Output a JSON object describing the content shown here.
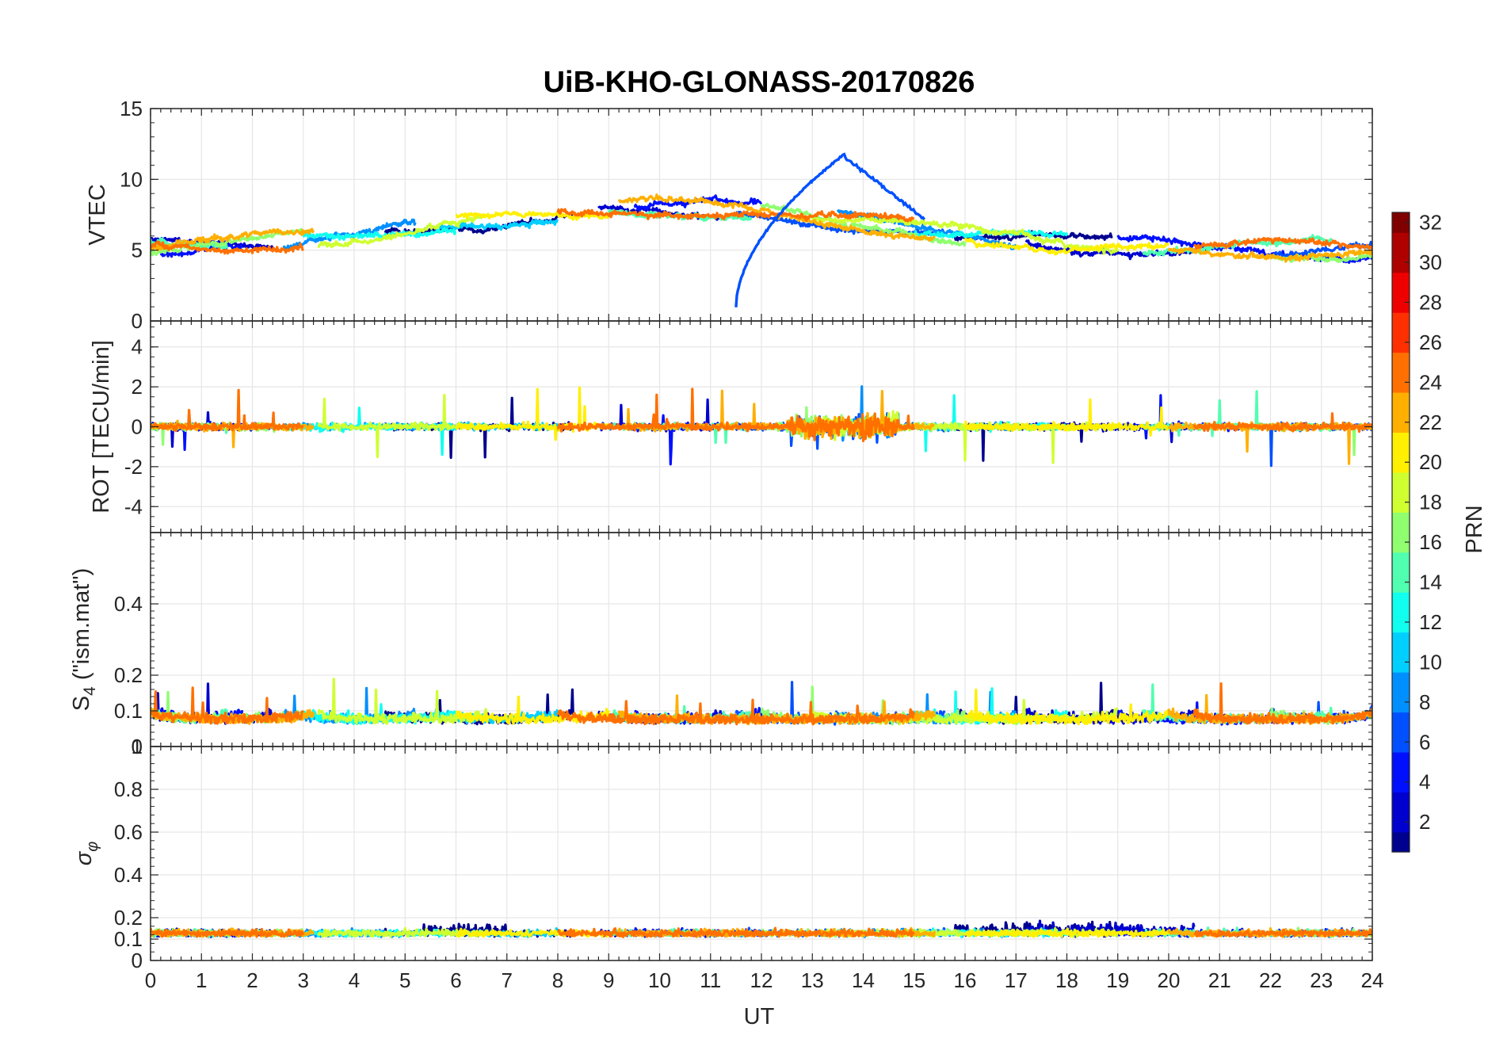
{
  "title": "UiB-KHO-GLONASS-20170826",
  "colors": {
    "axis": "#262626",
    "grid": "#e6e6e6",
    "colormap": [
      "#00008f",
      "#0000cf",
      "#0010ff",
      "#0050ff",
      "#008fff",
      "#00cfff",
      "#10ffef",
      "#50ffaf",
      "#8fff70",
      "#cfff30",
      "#ffef00",
      "#ffaf00",
      "#ff7000",
      "#ff3000",
      "#ef0000",
      "#af0000",
      "#800000"
    ]
  },
  "chart_data": [
    {
      "type": "line",
      "id": "vtec",
      "ylabel": "VTEC",
      "xlim": [
        0,
        24
      ],
      "ylim": [
        0,
        15
      ],
      "yticks": [
        0,
        5,
        10,
        15
      ],
      "ytick_labels": [
        "0",
        "5",
        "10",
        "15"
      ],
      "grid": true,
      "series_prn": [
        1,
        3,
        5,
        7,
        8,
        10,
        12,
        14,
        16,
        18,
        20,
        22,
        24
      ],
      "notes_series": "Many short PRN passes; one prominent rising pass starting near UT 11.5 at ~1 and peaking ~11.7 near UT 13.6"
    },
    {
      "type": "line",
      "id": "rot",
      "ylabel": "ROT [TECU/min]",
      "xlim": [
        0,
        24
      ],
      "ylim": [
        -5.3,
        5.3
      ],
      "yticks": [
        -4,
        -2,
        0,
        2,
        4
      ],
      "ytick_labels": [
        "-4",
        "-2",
        "0",
        "2",
        "4"
      ],
      "grid": true
    },
    {
      "type": "line",
      "id": "s4",
      "ylabel": "S4 (\"ism.mat\")",
      "xlim": [
        0,
        24
      ],
      "ylim": [
        0,
        0.6
      ],
      "yticks": [
        0,
        0.1,
        0.2,
        0.4
      ],
      "ytick_labels": [
        "0",
        "0.1",
        "0.2",
        "0.4"
      ],
      "top_label": "1",
      "grid": true
    },
    {
      "type": "line",
      "id": "sigma",
      "ylabel": "σφ",
      "xlabel": "UT",
      "xlim": [
        0,
        24
      ],
      "ylim": [
        0,
        1
      ],
      "yticks": [
        0,
        0.1,
        0.2,
        0.4,
        0.6,
        0.8
      ],
      "ytick_labels": [
        "0",
        "0.1",
        "0.2",
        "0.4",
        "0.6",
        "0.8"
      ],
      "xticks": [
        0,
        1,
        2,
        3,
        4,
        5,
        6,
        7,
        8,
        9,
        10,
        11,
        12,
        13,
        14,
        15,
        16,
        17,
        18,
        19,
        20,
        21,
        22,
        23,
        24
      ],
      "xtick_labels": [
        "0",
        "1",
        "2",
        "3",
        "4",
        "5",
        "6",
        "7",
        "8",
        "9",
        "10",
        "11",
        "12",
        "13",
        "14",
        "15",
        "16",
        "17",
        "18",
        "19",
        "20",
        "21",
        "22",
        "23",
        "24"
      ],
      "grid": true
    }
  ],
  "colorbar": {
    "label": "PRN",
    "range": [
      1,
      32
    ],
    "ticks": [
      2,
      4,
      6,
      8,
      10,
      12,
      14,
      16,
      18,
      20,
      22,
      24,
      26,
      28,
      30,
      32
    ],
    "tick_labels": [
      "2",
      "4",
      "6",
      "8",
      "10",
      "12",
      "14",
      "16",
      "18",
      "20",
      "22",
      "24",
      "26",
      "28",
      "30",
      "32"
    ]
  }
}
